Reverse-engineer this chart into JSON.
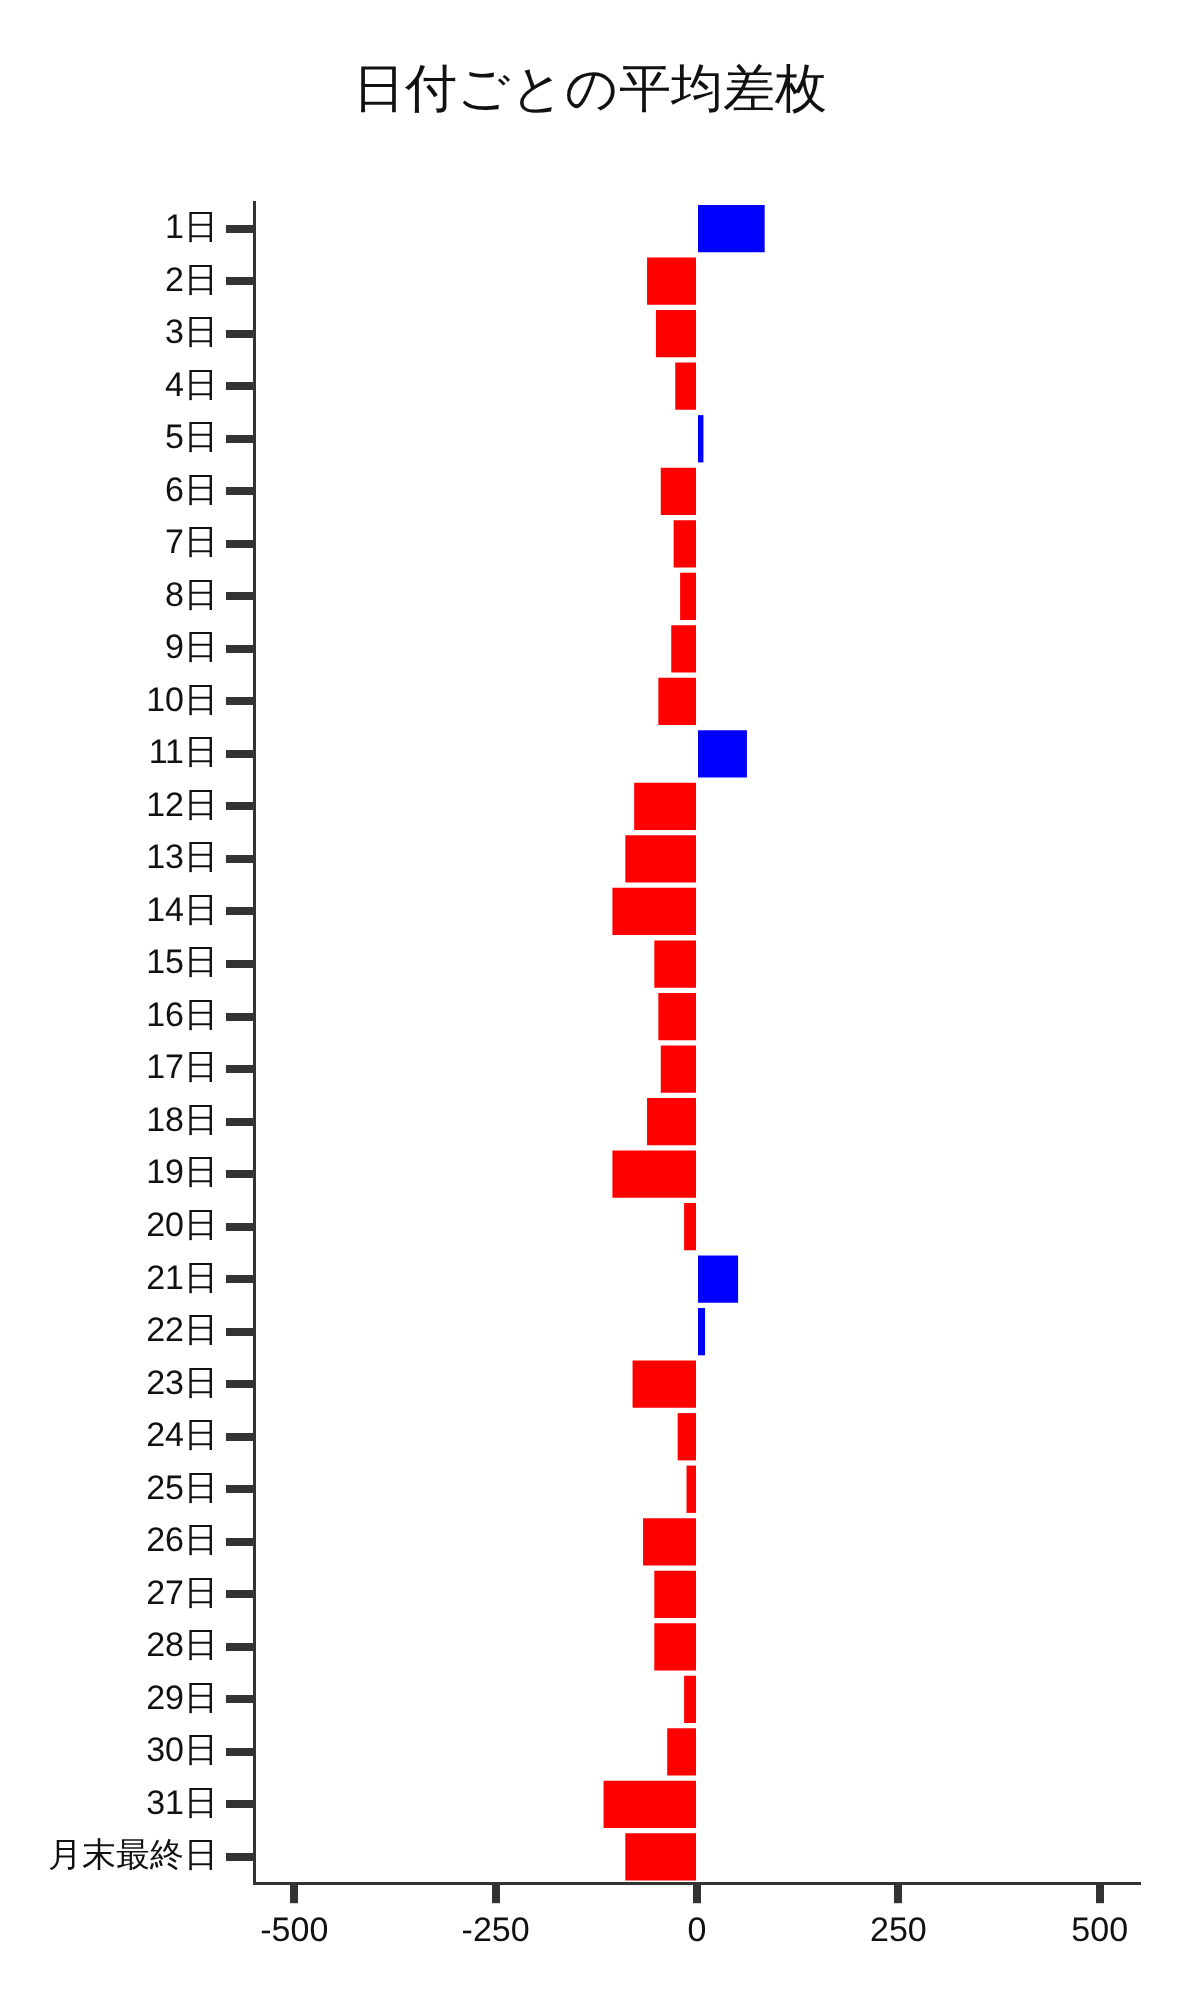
{
  "chart_data": {
    "type": "bar",
    "orientation": "horizontal",
    "title": "日付ごとの平均差枚",
    "categories": [
      "1日",
      "2日",
      "3日",
      "4日",
      "5日",
      "6日",
      "7日",
      "8日",
      "9日",
      "10日",
      "11日",
      "12日",
      "13日",
      "14日",
      "15日",
      "16日",
      "17日",
      "18日",
      "19日",
      "20日",
      "21日",
      "22日",
      "23日",
      "24日",
      "25日",
      "26日",
      "27日",
      "28日",
      "29日",
      "30日",
      "31日",
      "月末最終日"
    ],
    "values": [
      84,
      -62,
      -51,
      -27,
      8,
      -45,
      -29,
      -21,
      -32,
      -48,
      62,
      -78,
      -89,
      -105,
      -53,
      -48,
      -45,
      -62,
      -105,
      -16,
      51,
      10,
      -80,
      -24,
      -13,
      -67,
      -53,
      -53,
      -16,
      -37,
      -116,
      -89
    ],
    "colors": [
      "#0000ff",
      "#ff0000",
      "#ff0000",
      "#ff0000",
      "#0000ff",
      "#ff0000",
      "#ff0000",
      "#ff0000",
      "#ff0000",
      "#ff0000",
      "#0000ff",
      "#ff0000",
      "#ff0000",
      "#ff0000",
      "#ff0000",
      "#ff0000",
      "#ff0000",
      "#ff0000",
      "#ff0000",
      "#ff0000",
      "#0000ff",
      "#0000ff",
      "#ff0000",
      "#ff0000",
      "#ff0000",
      "#ff0000",
      "#ff0000",
      "#ff0000",
      "#ff0000",
      "#ff0000",
      "#ff0000",
      "#ff0000"
    ],
    "xlim": [
      -550,
      550
    ],
    "xticks": [
      -500,
      -250,
      0,
      250,
      500
    ],
    "grid": false,
    "legend": false
  }
}
